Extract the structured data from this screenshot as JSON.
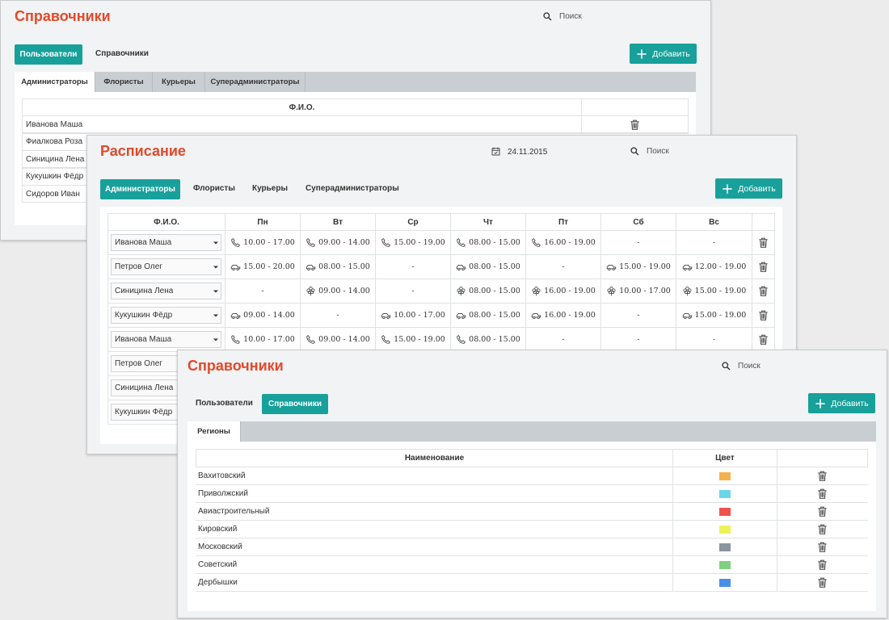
{
  "users_window": {
    "title": "Справочники",
    "search": "Поиск",
    "tabs": [
      "Пользователи",
      "Справочники"
    ],
    "active_tab": 0,
    "add_button": "Добавить",
    "subtabs": [
      "Администраторы",
      "Флористы",
      "Курьеры",
      "Суперадминистраторы"
    ],
    "active_subtab": 0,
    "table": {
      "header": "Ф.И.О.",
      "rows": [
        "Иванова Маша",
        "Фиалкова Роза",
        "Синицина Лена",
        "Кукушкин Фёдр",
        "Сидоров Иван"
      ]
    }
  },
  "schedule_window": {
    "title": "Расписание",
    "date": "24.11.2015",
    "search": "Поиск",
    "tabs": [
      "Администраторы",
      "Флористы",
      "Курьеры",
      "Суперадминистраторы"
    ],
    "active_tab": 0,
    "add_button": "Добавить",
    "table": {
      "header": [
        "Ф.И.О.",
        "Пн",
        "Вт",
        "Ср",
        "Чт",
        "Пт",
        "Сб",
        "Вс"
      ],
      "rows": [
        {
          "name": "Иванова Маша",
          "cells": [
            {
              "icon": "phone",
              "text": "10.00 - 17.00"
            },
            {
              "icon": "phone",
              "text": "09.00 - 14.00"
            },
            {
              "icon": "phone",
              "text": "15.00 - 19.00"
            },
            {
              "icon": "phone",
              "text": "08.00 - 15.00"
            },
            {
              "icon": "phone",
              "text": "16.00 - 19.00"
            },
            {
              "text": "-"
            },
            {
              "text": "-"
            }
          ]
        },
        {
          "name": "Петров Олег",
          "cells": [
            {
              "icon": "car",
              "text": "15.00 - 20.00"
            },
            {
              "icon": "car",
              "text": "08.00 - 15.00"
            },
            {
              "text": "-"
            },
            {
              "icon": "car",
              "text": "08.00 - 15.00"
            },
            {
              "text": "-"
            },
            {
              "icon": "car",
              "text": "15.00 - 19.00"
            },
            {
              "icon": "car",
              "text": "12.00 - 19.00"
            }
          ]
        },
        {
          "name": "Синицина Лена",
          "cells": [
            {
              "text": "-"
            },
            {
              "icon": "flower",
              "text": "09.00 - 14.00"
            },
            {
              "text": "-"
            },
            {
              "icon": "flower",
              "text": "08.00 - 15.00"
            },
            {
              "icon": "flower",
              "text": "16.00 - 19.00"
            },
            {
              "icon": "flower",
              "text": "10.00 - 17.00"
            },
            {
              "icon": "flower",
              "text": "15.00 - 19.00"
            }
          ]
        },
        {
          "name": "Кукушкин Фёдр",
          "cells": [
            {
              "icon": "car",
              "text": "09.00 - 14.00"
            },
            {
              "text": "-"
            },
            {
              "icon": "car",
              "text": "10.00 - 17.00"
            },
            {
              "icon": "car",
              "text": "08.00 - 15.00"
            },
            {
              "icon": "car",
              "text": "16.00 - 19.00"
            },
            {
              "text": "-"
            },
            {
              "icon": "car",
              "text": "15.00 - 19.00"
            }
          ]
        },
        {
          "name": "Иванова Маша",
          "cells": [
            {
              "icon": "phone",
              "text": "10.00 - 17.00"
            },
            {
              "icon": "phone",
              "text": "09.00 - 14.00"
            },
            {
              "icon": "phone",
              "text": "15.00 - 19.00"
            },
            {
              "icon": "phone",
              "text": "08.00 - 15.00"
            },
            {
              "text": "-"
            },
            {
              "text": "-"
            },
            {
              "text": "-"
            }
          ]
        },
        {
          "name": "Петров Олег"
        },
        {
          "name": "Синицина Лена"
        },
        {
          "name": "Кукушкин Фёдр"
        }
      ]
    }
  },
  "regions_window": {
    "title": "Справочники",
    "search": "Поиск",
    "tabs": [
      "Пользователи",
      "Справочники"
    ],
    "active_tab": 1,
    "add_button": "Добавить",
    "subtabs": [
      "Регионы"
    ],
    "active_subtab": 0,
    "table": {
      "header": [
        "Наименование",
        "Цвет"
      ],
      "rows": [
        {
          "name": "Вахитовский",
          "color": "#f5b14b"
        },
        {
          "name": "Приволжский",
          "color": "#6dd5e8"
        },
        {
          "name": "Авиастроительный",
          "color": "#ef5350"
        },
        {
          "name": "Кировский",
          "color": "#eef25a"
        },
        {
          "name": "Московский",
          "color": "#8a959e"
        },
        {
          "name": "Советский",
          "color": "#7fd07f"
        },
        {
          "name": "Дербышки",
          "color": "#4a8fe7"
        }
      ]
    }
  }
}
